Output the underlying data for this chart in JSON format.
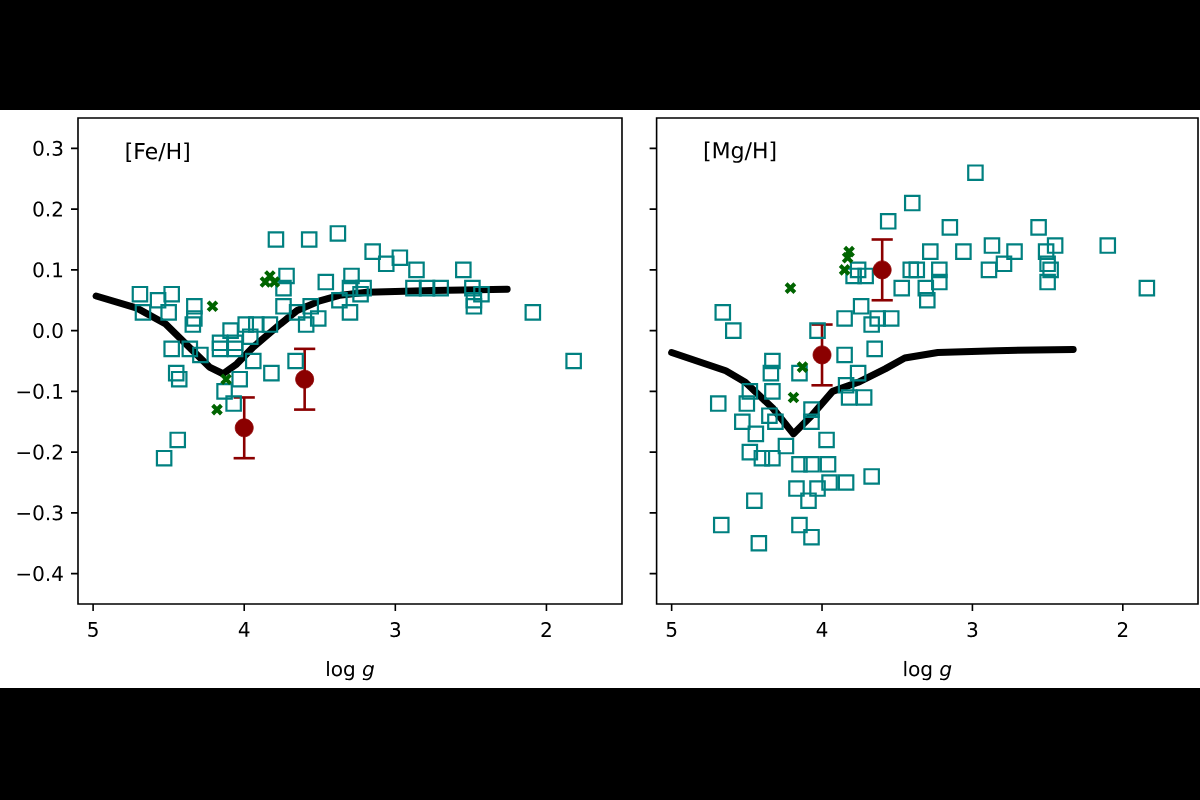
{
  "chart_data": [
    {
      "type": "scatter",
      "title": "[Fe/H]",
      "xlabel": "log *g*",
      "xlim": [
        5.1,
        1.5
      ],
      "xticks": [
        5,
        4,
        3,
        2
      ],
      "ylim": [
        -0.45,
        0.35
      ],
      "yticks": [
        {
          "value": -0.4,
          "label": "−0.4"
        },
        {
          "value": -0.3,
          "label": "−0.3"
        },
        {
          "value": -0.2,
          "label": "−0.2"
        },
        {
          "value": -0.1,
          "label": "−0.1"
        },
        {
          "value": 0,
          "label": "0.0"
        },
        0.1,
        0.2,
        0.3
      ],
      "series": [
        {
          "color": "#008080",
          "marker": "square",
          "x": [
            4.69,
            4.67,
            4.57,
            4.48,
            4.5,
            4.33,
            4.33,
            4.34,
            4.48,
            4.36,
            4.29,
            4.45,
            4.43,
            4.16,
            4.09,
            4.06,
            4.16,
            4.06,
            3.99,
            3.96,
            3.94,
            4.03,
            3.82,
            3.92,
            3.83,
            3.72,
            3.74,
            3.74,
            3.65,
            3.66,
            3.59,
            3.56,
            4.13,
            4.07,
            4.53,
            4.44,
            3.79,
            3.57,
            3.38,
            3.15,
            3.06,
            2.97,
            2.86,
            2.55,
            3.46,
            3.29,
            3.3,
            3.21,
            3.23,
            3.3,
            3.37,
            3.51,
            2.88,
            2.79,
            2.7,
            2.49,
            2.48,
            2.48,
            2.43,
            2.09,
            1.82
          ],
          "values": [
            0.06,
            0.03,
            0.05,
            0.06,
            0.03,
            0.04,
            0.02,
            0.01,
            -0.03,
            -0.03,
            -0.04,
            -0.07,
            -0.08,
            -0.02,
            0.0,
            -0.02,
            -0.03,
            -0.03,
            0.01,
            -0.01,
            -0.05,
            -0.08,
            -0.07,
            0.01,
            0.01,
            0.09,
            0.07,
            0.04,
            0.03,
            -0.05,
            0.01,
            0.04,
            -0.1,
            -0.12,
            -0.21,
            -0.18,
            0.15,
            0.15,
            0.16,
            0.13,
            0.11,
            0.12,
            0.1,
            0.1,
            0.08,
            0.09,
            0.07,
            0.07,
            0.06,
            0.03,
            0.05,
            0.02,
            0.07,
            0.07,
            0.07,
            0.07,
            0.05,
            0.04,
            0.06,
            0.03,
            -0.05
          ]
        },
        {
          "color": "#006400",
          "marker": "cross",
          "x": [
            4.21,
            3.86,
            3.83,
            3.8,
            4.12,
            4.18
          ],
          "values": [
            0.04,
            0.08,
            0.09,
            0.08,
            -0.08,
            -0.13
          ]
        },
        {
          "color": "#8b0000",
          "marker": "circle",
          "x": [
            4.0,
            3.6
          ],
          "values": [
            -0.16,
            -0.08
          ],
          "errors": [
            0.05,
            0.05
          ]
        },
        {
          "type": "line",
          "color": "#000000",
          "marker": "none",
          "x": [
            4.98,
            4.71,
            4.52,
            4.34,
            4.23,
            4.14,
            4.05,
            3.94,
            3.76,
            3.65,
            3.5,
            3.37,
            3.19,
            2.75,
            2.26
          ],
          "values": [
            0.057,
            0.037,
            0.011,
            -0.033,
            -0.06,
            -0.071,
            -0.055,
            -0.027,
            0.011,
            0.033,
            0.049,
            0.058,
            0.063,
            0.066,
            0.068
          ]
        }
      ]
    },
    {
      "type": "scatter",
      "title": "[Mg/H]",
      "xlabel": "log *g*",
      "xlim": [
        5.1,
        1.5
      ],
      "xticks": [
        5,
        4,
        3,
        2
      ],
      "ylim": [
        -0.45,
        0.35
      ],
      "yticks": [
        -0.4,
        -0.3,
        -0.2,
        -0.1,
        0,
        0.1,
        0.2,
        0.3
      ],
      "tick_labels": "x",
      "series": [
        {
          "color": "#008080",
          "marker": "square",
          "x": [
            4.66,
            4.59,
            4.69,
            4.48,
            4.5,
            4.53,
            4.44,
            4.48,
            4.4,
            4.33,
            4.33,
            4.34,
            4.33,
            4.35,
            4.31,
            4.24,
            4.15,
            4.07,
            3.96,
            3.97,
            4.07,
            4.07,
            4.15,
            4.17,
            4.03,
            4.09,
            3.95,
            3.84,
            3.67,
            4.45,
            4.67,
            4.15,
            4.07,
            4.42,
            4.03,
            3.85,
            3.84,
            3.72,
            3.82,
            3.76,
            3.85,
            3.74,
            3.67,
            3.63,
            3.54,
            3.65,
            3.56,
            3.4,
            3.76,
            3.79,
            3.71,
            3.41,
            2.98,
            3.15,
            3.28,
            3.06,
            2.87,
            2.89,
            2.79,
            2.72,
            2.56,
            2.51,
            2.45,
            2.5,
            2.48,
            2.5,
            2.1,
            1.84,
            3.47,
            3.37,
            3.22,
            3.22,
            3.31,
            3.3
          ],
          "values": [
            0.03,
            0.0,
            -0.12,
            -0.1,
            -0.12,
            -0.15,
            -0.17,
            -0.2,
            -0.21,
            -0.21,
            -0.05,
            -0.07,
            -0.1,
            -0.14,
            -0.15,
            -0.19,
            -0.22,
            -0.22,
            -0.22,
            -0.18,
            -0.13,
            -0.15,
            -0.07,
            -0.26,
            -0.26,
            -0.28,
            -0.25,
            -0.25,
            -0.24,
            -0.28,
            -0.32,
            -0.32,
            -0.34,
            -0.35,
            0.0,
            -0.04,
            -0.09,
            -0.11,
            -0.11,
            -0.07,
            0.02,
            0.04,
            0.01,
            0.02,
            0.02,
            -0.03,
            0.18,
            0.21,
            0.1,
            0.09,
            0.09,
            0.1,
            0.26,
            0.17,
            0.13,
            0.13,
            0.14,
            0.1,
            0.11,
            0.13,
            0.17,
            0.13,
            0.14,
            0.11,
            0.1,
            0.08,
            0.14,
            0.07,
            0.07,
            0.1,
            0.1,
            0.08,
            0.07,
            0.05
          ]
        },
        {
          "color": "#006400",
          "marker": "cross",
          "x": [
            4.21,
            4.13,
            4.19,
            3.85,
            3.83,
            3.82
          ],
          "values": [
            0.07,
            -0.06,
            -0.11,
            0.1,
            0.12,
            0.13
          ]
        },
        {
          "color": "#8b0000",
          "marker": "circle",
          "x": [
            4.0,
            3.6
          ],
          "values": [
            -0.04,
            0.1
          ],
          "errors": [
            0.05,
            0.05
          ]
        },
        {
          "type": "line",
          "color": "#000000",
          "marker": "none",
          "x": [
            5.0,
            4.64,
            4.51,
            4.33,
            4.19,
            4.07,
            3.93,
            3.76,
            3.58,
            3.45,
            3.23,
            2.84,
            2.33
          ],
          "values": [
            -0.036,
            -0.066,
            -0.085,
            -0.127,
            -0.17,
            -0.14,
            -0.1,
            -0.085,
            -0.063,
            -0.045,
            -0.036,
            -0.033,
            -0.031
          ]
        }
      ]
    }
  ]
}
